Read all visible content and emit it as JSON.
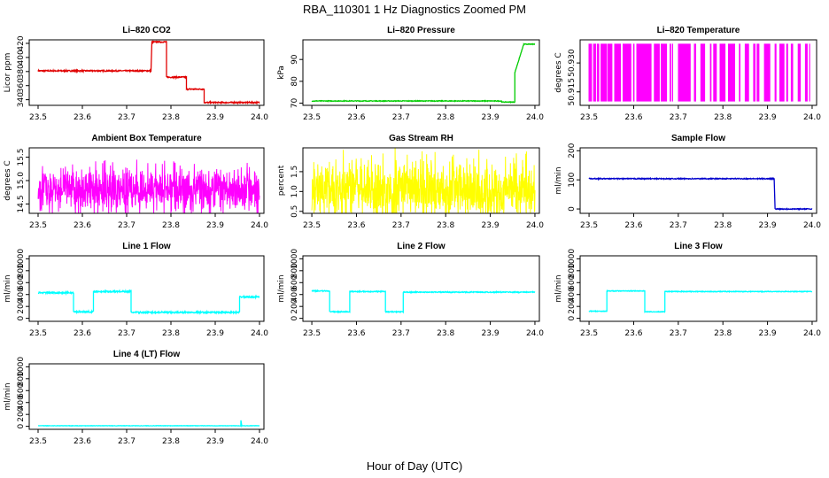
{
  "figure": {
    "suptitle": "RBA_110301  1 Hz Diagnostics Zoomed PM",
    "xlabel": "Hour of Day (UTC)"
  },
  "chart_data": [
    {
      "id": "co2",
      "type": "line",
      "title": "Li-820 CO2",
      "ylabel": "Licor ppm",
      "color": "#e00000",
      "xlim": [
        23.48,
        24.01
      ],
      "ylim": [
        332,
        425
      ],
      "x_ticks": [
        "23.5",
        "23.6",
        "23.7",
        "23.8",
        "23.9",
        "24.0"
      ],
      "y_ticks": [
        "340",
        "360",
        "380",
        "400",
        "420"
      ],
      "segments": [
        {
          "x0": 23.5,
          "x1": 23.755,
          "y": 381
        },
        {
          "x0": 23.757,
          "x1": 23.79,
          "y": 422
        },
        {
          "x0": 23.79,
          "x1": 23.835,
          "y": 372
        },
        {
          "x0": 23.835,
          "x1": 23.875,
          "y": 355
        },
        {
          "x0": 23.875,
          "x1": 24.0,
          "y": 336
        }
      ],
      "noise": 0.9
    },
    {
      "id": "pressure",
      "type": "line",
      "title": "Li-820 Pressure",
      "ylabel": "kPa",
      "color": "#00cc00",
      "xlim": [
        23.48,
        24.01
      ],
      "ylim": [
        69,
        99
      ],
      "x_ticks": [
        "23.5",
        "23.6",
        "23.7",
        "23.8",
        "23.9",
        "24.0"
      ],
      "y_ticks": [
        "70",
        "80",
        "90"
      ],
      "segments": [
        {
          "x0": 23.5,
          "x1": 23.925,
          "y": 71
        },
        {
          "x0": 23.925,
          "x1": 23.955,
          "y": 70.5
        },
        {
          "x0": 23.955,
          "x1": 23.975,
          "y": 84,
          "ramp_to": 97
        },
        {
          "x0": 23.975,
          "x1": 24.0,
          "y": 97
        }
      ],
      "noise": 0.15
    },
    {
      "id": "licor_temp",
      "type": "line",
      "title": "Li-820 Temperature",
      "ylabel": "degrees C",
      "color": "#ff00ff",
      "xlim": [
        23.48,
        24.01
      ],
      "ylim": [
        50.908,
        50.942
      ],
      "x_ticks": [
        "23.5",
        "23.6",
        "23.7",
        "23.8",
        "23.9",
        "24.0"
      ],
      "y_ticks": [
        "50.915",
        "50.930"
      ],
      "band": [
        50.91,
        50.94
      ]
    },
    {
      "id": "box_temp",
      "type": "line",
      "title": "Ambient Box Temperature",
      "ylabel": "degrees C",
      "color": "#ff00ff",
      "xlim": [
        23.48,
        24.01
      ],
      "ylim": [
        14.3,
        15.7
      ],
      "x_ticks": [
        "23.5",
        "23.6",
        "23.7",
        "23.8",
        "23.9",
        "24.0"
      ],
      "y_ticks": [
        "14.5",
        "15.0",
        "15.5"
      ],
      "center": 14.8,
      "spread": 0.55,
      "noise": 0.35
    },
    {
      "id": "rh",
      "type": "line",
      "title": "Gas Stream RH",
      "ylabel": "percent",
      "color": "#ffff00",
      "xlim": [
        23.48,
        24.01
      ],
      "ylim": [
        0.45,
        2.1
      ],
      "x_ticks": [
        "23.5",
        "23.6",
        "23.7",
        "23.8",
        "23.9",
        "24.0"
      ],
      "y_ticks": [
        "0.5",
        "1.0",
        "1.5"
      ],
      "center": 1.05,
      "spread": 0.9,
      "noise": 0.45
    },
    {
      "id": "sample_flow",
      "type": "line",
      "title": "Sample Flow",
      "ylabel": "ml/min",
      "color": "#0000cc",
      "xlim": [
        23.48,
        24.01
      ],
      "ylim": [
        -15,
        210
      ],
      "x_ticks": [
        "23.5",
        "23.6",
        "23.7",
        "23.8",
        "23.9",
        "24.0"
      ],
      "y_ticks": [
        "0",
        "100",
        "200"
      ],
      "segments": [
        {
          "x0": 23.5,
          "x1": 23.915,
          "y": 104
        },
        {
          "x0": 23.917,
          "x1": 24.0,
          "y": 0
        }
      ],
      "noise": 1.5
    },
    {
      "id": "line1",
      "type": "line",
      "title": "Line 1 Flow",
      "ylabel": "ml/min",
      "color": "#00ffff",
      "xlim": [
        23.48,
        24.01
      ],
      "ylim": [
        -50,
        1050
      ],
      "x_ticks": [
        "23.5",
        "23.6",
        "23.7",
        "23.8",
        "23.9",
        "24.0"
      ],
      "y_ticks": [
        "0",
        "200",
        "400",
        "600",
        "800",
        "1000"
      ],
      "segments": [
        {
          "x0": 23.5,
          "x1": 23.58,
          "y": 430
        },
        {
          "x0": 23.58,
          "x1": 23.625,
          "y": 110
        },
        {
          "x0": 23.625,
          "x1": 23.71,
          "y": 450
        },
        {
          "x0": 23.71,
          "x1": 23.955,
          "y": 100
        },
        {
          "x0": 23.955,
          "x1": 24.0,
          "y": 360
        }
      ],
      "noise": 12
    },
    {
      "id": "line2",
      "type": "line",
      "title": "Line 2 Flow",
      "ylabel": "ml/min",
      "color": "#00ffff",
      "xlim": [
        23.48,
        24.01
      ],
      "ylim": [
        -50,
        1050
      ],
      "x_ticks": [
        "23.5",
        "23.6",
        "23.7",
        "23.8",
        "23.9",
        "24.0"
      ],
      "y_ticks": [
        "0",
        "200",
        "400",
        "600",
        "800",
        "1000"
      ],
      "segments": [
        {
          "x0": 23.5,
          "x1": 23.54,
          "y": 460
        },
        {
          "x0": 23.54,
          "x1": 23.585,
          "y": 110
        },
        {
          "x0": 23.585,
          "x1": 23.665,
          "y": 450
        },
        {
          "x0": 23.665,
          "x1": 23.705,
          "y": 110
        },
        {
          "x0": 23.705,
          "x1": 24.0,
          "y": 440
        }
      ],
      "noise": 8
    },
    {
      "id": "line3",
      "type": "line",
      "title": "Line 3 Flow",
      "ylabel": "ml/min",
      "color": "#00ffff",
      "xlim": [
        23.48,
        24.01
      ],
      "ylim": [
        -50,
        1050
      ],
      "x_ticks": [
        "23.5",
        "23.6",
        "23.7",
        "23.8",
        "23.9",
        "24.0"
      ],
      "y_ticks": [
        "0",
        "200",
        "400",
        "600",
        "800",
        "1000"
      ],
      "segments": [
        {
          "x0": 23.5,
          "x1": 23.54,
          "y": 120
        },
        {
          "x0": 23.54,
          "x1": 23.625,
          "y": 460
        },
        {
          "x0": 23.625,
          "x1": 23.67,
          "y": 110
        },
        {
          "x0": 23.67,
          "x1": 24.0,
          "y": 450
        }
      ],
      "noise": 6
    },
    {
      "id": "line4",
      "type": "line",
      "title": "Line 4 (LT) Flow",
      "ylabel": "ml/min",
      "color": "#00ffff",
      "xlim": [
        23.48,
        24.01
      ],
      "ylim": [
        -50,
        1050
      ],
      "x_ticks": [
        "23.5",
        "23.6",
        "23.7",
        "23.8",
        "23.9",
        "24.0"
      ],
      "y_ticks": [
        "0",
        "200",
        "400",
        "600",
        "800",
        "1000"
      ],
      "segments": [
        {
          "x0": 23.5,
          "x1": 24.0,
          "y": 10
        }
      ],
      "spike": {
        "x": 23.958,
        "y": 100
      },
      "noise": 3
    }
  ]
}
